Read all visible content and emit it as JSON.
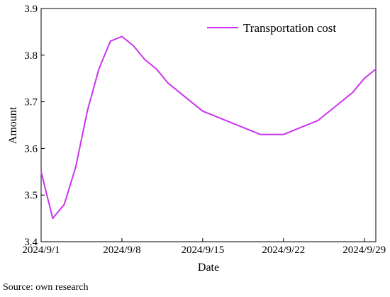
{
  "source_note": "Source: own research",
  "chart_data": {
    "type": "line",
    "title": "",
    "xlabel": "Date",
    "ylabel": "Amount",
    "xlim": [
      "2024/9/1",
      "2024/9/30"
    ],
    "ylim": [
      3.4,
      3.9
    ],
    "x_tick_labels": [
      "2024/9/1",
      "2024/9/8",
      "2024/9/15",
      "2024/9/22",
      "2024/9/29"
    ],
    "y_tick_values": [
      3.4,
      3.5,
      3.6,
      3.7,
      3.8,
      3.9
    ],
    "y_tick_labels": [
      "3.4",
      "3.5",
      "3.6",
      "3.7",
      "3.8",
      "3.9"
    ],
    "grid": false,
    "legend_position": "top-right",
    "series": [
      {
        "name": "Transportation cost",
        "color": "#cc33ee",
        "x": [
          "2024/9/1",
          "2024/9/2",
          "2024/9/3",
          "2024/9/4",
          "2024/9/5",
          "2024/9/6",
          "2024/9/7",
          "2024/9/8",
          "2024/9/9",
          "2024/9/10",
          "2024/9/11",
          "2024/9/12",
          "2024/9/15",
          "2024/9/20",
          "2024/9/22",
          "2024/9/25",
          "2024/9/28",
          "2024/9/29",
          "2024/9/30"
        ],
        "y": [
          3.55,
          3.45,
          3.48,
          3.56,
          3.68,
          3.77,
          3.83,
          3.84,
          3.82,
          3.79,
          3.77,
          3.74,
          3.68,
          3.63,
          3.63,
          3.66,
          3.72,
          3.75,
          3.77
        ]
      }
    ]
  }
}
